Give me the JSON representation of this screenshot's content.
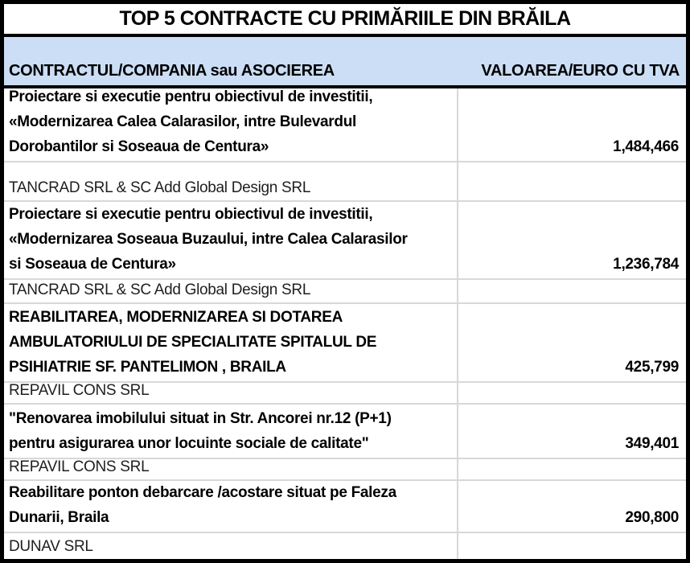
{
  "title": "TOP 5 CONTRACTE CU PRIMĂRIILE DIN BRĂILA",
  "header": {
    "col1": "CONTRACTUL/COMPANIA sau ASOCIEREA",
    "col2": "VALOAREA/EURO CU TVA"
  },
  "colors": {
    "header_bg": "#CBDEF5",
    "outer_border": "#000000",
    "grid_line": "#D8D8D8",
    "text": "#000000"
  },
  "rows": [
    {
      "type": "contract",
      "text": "Proiectare si executie pentru obiectivul de investitii,\n«Modernizarea Calea Calarasilor, intre Bulevardul\nDorobantilor si Soseaua de Centura»",
      "value": "1,484,466"
    },
    {
      "type": "company",
      "text": "TANCRAD SRL & SC Add Global Design SRL",
      "value": ""
    },
    {
      "type": "contract",
      "text": "Proiectare si executie pentru obiectivul de investitii,\n«Modernizarea Soseaua Buzaului, intre Calea Calarasilor\nsi Soseaua de Centura»",
      "value": "1,236,784"
    },
    {
      "type": "company",
      "text": "TANCRAD SRL & SC Add Global Design SRL",
      "value": ""
    },
    {
      "type": "contract",
      "text": "REABILITAREA, MODERNIZAREA SI DOTAREA\nAMBULATORIULUI DE SPECIALITATE SPITALUL DE\nPSIHIATRIE SF. PANTELIMON , BRAILA",
      "value": "425,799"
    },
    {
      "type": "company",
      "text": "REPAVIL CONS SRL",
      "value": ""
    },
    {
      "type": "contract",
      "text": "\"Renovarea imobilului situat in Str. Ancorei nr.12 (P+1)\npentru asigurarea unor locuinte sociale de calitate\"",
      "value": "349,401"
    },
    {
      "type": "company",
      "text": "REPAVIL CONS SRL",
      "value": ""
    },
    {
      "type": "contract",
      "text": "Reabilitare ponton debarcare /acostare situat pe Faleza\nDunarii, Braila",
      "value": "290,800"
    },
    {
      "type": "company",
      "text": "DUNAV SRL",
      "value": ""
    }
  ],
  "chart_data": {
    "type": "table",
    "title": "TOP 5 CONTRACTE CU PRIMĂRIILE DIN BRĂILA",
    "columns": [
      "CONTRACTUL/COMPANIA sau ASOCIEREA",
      "VALOAREA/EURO CU TVA"
    ],
    "rows": [
      {
        "contract": "Proiectare si executie pentru obiectivul de investitii, «Modernizarea Calea Calarasilor, intre Bulevardul Dorobantilor si Soseaua de Centura»",
        "company": "TANCRAD SRL & SC Add Global Design SRL",
        "value_euro_cu_tva": 1484466
      },
      {
        "contract": "Proiectare si executie pentru obiectivul de investitii, «Modernizarea Soseaua Buzaului, intre Calea Calarasilor si Soseaua de Centura»",
        "company": "TANCRAD SRL & SC Add Global Design SRL",
        "value_euro_cu_tva": 1236784
      },
      {
        "contract": "REABILITAREA, MODERNIZAREA SI DOTAREA AMBULATORIULUI DE SPECIALITATE SPITALUL DE PSIHIATRIE SF. PANTELIMON , BRAILA",
        "company": "REPAVIL CONS SRL",
        "value_euro_cu_tva": 425799
      },
      {
        "contract": "\"Renovarea imobilului situat in Str. Ancorei nr.12 (P+1) pentru asigurarea unor locuinte sociale de calitate\"",
        "company": "REPAVIL CONS SRL",
        "value_euro_cu_tva": 349401
      },
      {
        "contract": "Reabilitare ponton debarcare /acostare situat pe Faleza Dunarii, Braila",
        "company": "DUNAV SRL",
        "value_euro_cu_tva": 290800
      }
    ]
  }
}
